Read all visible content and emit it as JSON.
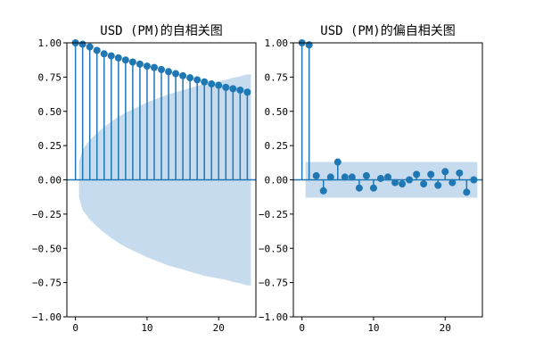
{
  "chart_data": [
    {
      "type": "stem",
      "title": "USD (PM)的自相关图",
      "xlabel": "",
      "ylabel": "",
      "xlim": [
        -1.2,
        25.2
      ],
      "ylim": [
        -1,
        1
      ],
      "xticks": [
        0,
        10,
        20
      ],
      "yticks": [
        -1.0,
        -0.75,
        -0.5,
        -0.25,
        0.0,
        0.25,
        0.5,
        0.75,
        1.0
      ],
      "ytick_labels": [
        "−1.00",
        "−0.75",
        "−0.50",
        "−0.25",
        "0.00",
        "0.25",
        "0.50",
        "0.75",
        "1.00"
      ],
      "lags": [
        0,
        1,
        2,
        3,
        4,
        5,
        6,
        7,
        8,
        9,
        10,
        11,
        12,
        13,
        14,
        15,
        16,
        17,
        18,
        19,
        20,
        21,
        22,
        23,
        24
      ],
      "values": [
        1.0,
        0.99,
        0.97,
        0.945,
        0.92,
        0.905,
        0.89,
        0.875,
        0.86,
        0.845,
        0.83,
        0.82,
        0.805,
        0.79,
        0.775,
        0.76,
        0.745,
        0.73,
        0.715,
        0.7,
        0.69,
        0.675,
        0.665,
        0.655,
        0.64
      ],
      "confidence_band": [
        0.13,
        0.22,
        0.29,
        0.34,
        0.385,
        0.425,
        0.46,
        0.49,
        0.515,
        0.54,
        0.565,
        0.585,
        0.605,
        0.625,
        0.64,
        0.655,
        0.67,
        0.685,
        0.7,
        0.71,
        0.72,
        0.73,
        0.745,
        0.755,
        0.77
      ],
      "color": "#1f77b4",
      "band_color": "#c6dbee"
    },
    {
      "type": "stem",
      "title": "USD (PM)的偏自相关图",
      "xlabel": "",
      "ylabel": "",
      "xlim": [
        -1.2,
        25.2
      ],
      "ylim": [
        -1,
        1
      ],
      "xticks": [
        0,
        10,
        20
      ],
      "yticks": [
        -1.0,
        -0.75,
        -0.5,
        -0.25,
        0.0,
        0.25,
        0.5,
        0.75,
        1.0
      ],
      "ytick_labels": [
        "−1.00",
        "−0.75",
        "−0.50",
        "−0.25",
        "0.00",
        "0.25",
        "0.50",
        "0.75",
        "1.00"
      ],
      "lags": [
        0,
        1,
        2,
        3,
        4,
        5,
        6,
        7,
        8,
        9,
        10,
        11,
        12,
        13,
        14,
        15,
        16,
        17,
        18,
        19,
        20,
        21,
        22,
        23,
        24
      ],
      "values": [
        1.0,
        0.985,
        0.03,
        -0.08,
        0.02,
        0.13,
        0.02,
        0.02,
        -0.06,
        0.03,
        -0.06,
        0.01,
        0.02,
        -0.02,
        -0.03,
        0.0,
        0.04,
        -0.03,
        0.04,
        -0.04,
        0.06,
        -0.02,
        0.05,
        -0.09,
        0.0
      ],
      "confidence_band": [
        0.13,
        0.13,
        0.13,
        0.13,
        0.13,
        0.13,
        0.13,
        0.13,
        0.13,
        0.13,
        0.13,
        0.13,
        0.13,
        0.13,
        0.13,
        0.13,
        0.13,
        0.13,
        0.13,
        0.13,
        0.13,
        0.13,
        0.13,
        0.13,
        0.13
      ],
      "color": "#1f77b4",
      "band_color": "#c6dbee"
    }
  ]
}
